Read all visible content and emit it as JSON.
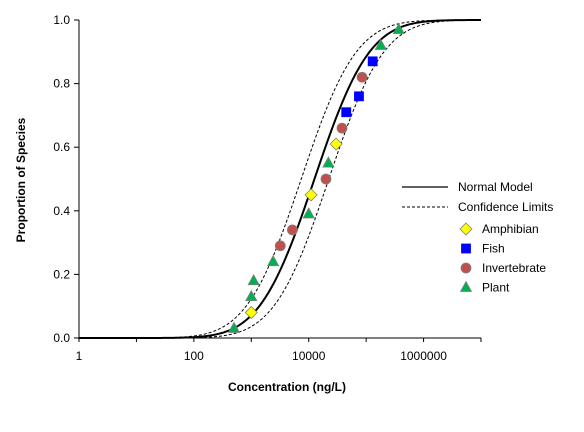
{
  "chart_data": {
    "type": "scatter",
    "x_scale": "log",
    "xlabel": "Concentration (ng/L)",
    "ylabel": "Proportion of Species",
    "xlim": [
      1,
      10000000
    ],
    "ylim": [
      0,
      1
    ],
    "x_ticks": [
      {
        "value": 1,
        "label": "1"
      },
      {
        "value": 100,
        "label": "100"
      },
      {
        "value": 10000,
        "label": "10000"
      },
      {
        "value": 1000000,
        "label": "1000000"
      }
    ],
    "y_ticks": [
      {
        "value": 0,
        "label": "0.0"
      },
      {
        "value": 0.2,
        "label": "0.2"
      },
      {
        "value": 0.4,
        "label": "0.4"
      },
      {
        "value": 0.6,
        "label": "0.6"
      },
      {
        "value": 0.8,
        "label": "0.8"
      },
      {
        "value": 1,
        "label": "1.0"
      }
    ],
    "model": {
      "name": "Normal Model",
      "log10_mean": 4.1,
      "log10_sd": 0.75
    },
    "confidence": {
      "name": "Confidence Limits",
      "lower_log10_mean": 4.35,
      "upper_log10_mean": 3.87,
      "log10_sd": 0.75
    },
    "series": [
      {
        "name": "Amphibian",
        "marker": "diamond",
        "color": "#FFFF00",
        "points": [
          {
            "x": 1000,
            "y": 0.08
          },
          {
            "x": 11000,
            "y": 0.45
          },
          {
            "x": 30000,
            "y": 0.61
          }
        ]
      },
      {
        "name": "Fish",
        "marker": "square",
        "color": "#0000FF",
        "points": [
          {
            "x": 45000,
            "y": 0.71
          },
          {
            "x": 75000,
            "y": 0.76
          },
          {
            "x": 130000,
            "y": 0.87
          }
        ]
      },
      {
        "name": "Invertebrate",
        "marker": "circle",
        "color": "#C0504D",
        "points": [
          {
            "x": 3200,
            "y": 0.29
          },
          {
            "x": 5200,
            "y": 0.34
          },
          {
            "x": 20000,
            "y": 0.5
          },
          {
            "x": 38000,
            "y": 0.66
          },
          {
            "x": 85000,
            "y": 0.82
          }
        ]
      },
      {
        "name": "Plant",
        "marker": "triangle",
        "color": "#00B050",
        "points": [
          {
            "x": 500,
            "y": 0.03
          },
          {
            "x": 1000,
            "y": 0.13
          },
          {
            "x": 1100,
            "y": 0.18
          },
          {
            "x": 2400,
            "y": 0.24
          },
          {
            "x": 10000,
            "y": 0.39
          },
          {
            "x": 22000,
            "y": 0.55
          },
          {
            "x": 180000,
            "y": 0.92
          },
          {
            "x": 370000,
            "y": 0.97
          }
        ]
      }
    ],
    "legend": {
      "placement": "right",
      "entries": [
        "Normal Model",
        "Confidence Limits",
        "Amphibian",
        "Fish",
        "Invertebrate",
        "Plant"
      ]
    }
  }
}
